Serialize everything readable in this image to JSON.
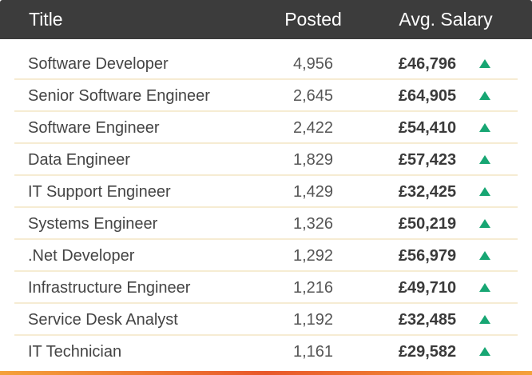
{
  "chart_data": {
    "type": "table",
    "columns": [
      "Title",
      "Posted",
      "Avg. Salary"
    ],
    "rows": [
      {
        "title": "Software Developer",
        "posted": "4,956",
        "salary": "£46,796",
        "trend": "up"
      },
      {
        "title": "Senior Software Engineer",
        "posted": "2,645",
        "salary": "£64,905",
        "trend": "up"
      },
      {
        "title": "Software Engineer",
        "posted": "2,422",
        "salary": "£54,410",
        "trend": "up"
      },
      {
        "title": "Data Engineer",
        "posted": "1,829",
        "salary": "£57,423",
        "trend": "up"
      },
      {
        "title": "IT Support Engineer",
        "posted": "1,429",
        "salary": "£32,425",
        "trend": "up"
      },
      {
        "title": "Systems Engineer",
        "posted": "1,326",
        "salary": "£50,219",
        "trend": "up"
      },
      {
        "title": ".Net Developer",
        "posted": "1,292",
        "salary": "£56,979",
        "trend": "up"
      },
      {
        "title": "Infrastructure Engineer",
        "posted": "1,216",
        "salary": "£49,710",
        "trend": "up"
      },
      {
        "title": "Service Desk Analyst",
        "posted": "1,192",
        "salary": "£32,485",
        "trend": "up"
      },
      {
        "title": "IT Technician",
        "posted": "1,161",
        "salary": "£29,582",
        "trend": "up"
      }
    ]
  },
  "colors": {
    "header_bg": "#3c3c3c",
    "row_divider": "#f6ecd3",
    "trend_up": "#17a673",
    "accent_orange": "#e8572a"
  }
}
